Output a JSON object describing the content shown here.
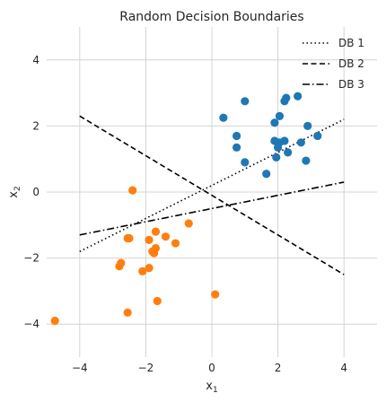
{
  "chart_data": {
    "type": "scatter",
    "title": "Random Decision Boundaries",
    "xlabel": {
      "base": "x",
      "sub": "1"
    },
    "ylabel": {
      "base": "x",
      "sub": "2"
    },
    "xlim": [
      -5,
      5
    ],
    "ylim": [
      -5,
      5
    ],
    "xticks": [
      -4,
      -2,
      0,
      2,
      4
    ],
    "yticks": [
      -4,
      -2,
      0,
      2,
      4
    ],
    "grid": true,
    "legend_position": "top-right",
    "scatter_series": [
      {
        "color": "#1f77b4",
        "points": [
          [
            0.35,
            2.25
          ],
          [
            1.0,
            2.75
          ],
          [
            2.25,
            2.85
          ],
          [
            2.6,
            2.9
          ],
          [
            2.2,
            2.75
          ],
          [
            1.9,
            2.1
          ],
          [
            2.05,
            2.3
          ],
          [
            0.75,
            1.7
          ],
          [
            0.75,
            1.35
          ],
          [
            1.9,
            1.55
          ],
          [
            2.05,
            1.5
          ],
          [
            2.2,
            1.55
          ],
          [
            2.0,
            1.35
          ],
          [
            2.7,
            1.5
          ],
          [
            2.9,
            2.0
          ],
          [
            3.2,
            1.7
          ],
          [
            2.3,
            1.2
          ],
          [
            1.95,
            1.05
          ],
          [
            1.0,
            0.9
          ],
          [
            1.65,
            0.55
          ],
          [
            2.85,
            0.95
          ]
        ]
      },
      {
        "color": "#ff7f0e",
        "points": [
          [
            -2.4,
            0.05
          ],
          [
            -2.55,
            -1.4
          ],
          [
            -2.5,
            -1.4
          ],
          [
            -1.9,
            -1.45
          ],
          [
            -1.7,
            -1.2
          ],
          [
            -1.4,
            -1.35
          ],
          [
            -1.1,
            -1.55
          ],
          [
            -0.7,
            -0.95
          ],
          [
            -1.7,
            -1.7
          ],
          [
            -1.8,
            -1.8
          ],
          [
            -1.75,
            -1.85
          ],
          [
            -2.75,
            -2.15
          ],
          [
            -2.8,
            -2.25
          ],
          [
            -1.9,
            -2.3
          ],
          [
            -2.1,
            -2.4
          ],
          [
            -1.65,
            -3.3
          ],
          [
            0.1,
            -3.1
          ],
          [
            -2.55,
            -3.65
          ],
          [
            -4.75,
            -3.9
          ]
        ]
      }
    ],
    "line_series": [
      {
        "name": "DB 1",
        "style": "dotted",
        "color": "#000000",
        "x": [
          -4,
          4
        ],
        "y": [
          -1.8,
          2.2
        ]
      },
      {
        "name": "DB 2",
        "style": "dashed",
        "color": "#000000",
        "x": [
          -4,
          4
        ],
        "y": [
          2.3,
          -2.5
        ]
      },
      {
        "name": "DB 3",
        "style": "dashdot",
        "color": "#000000",
        "x": [
          -4,
          4
        ],
        "y": [
          -1.3,
          0.3
        ]
      }
    ]
  }
}
